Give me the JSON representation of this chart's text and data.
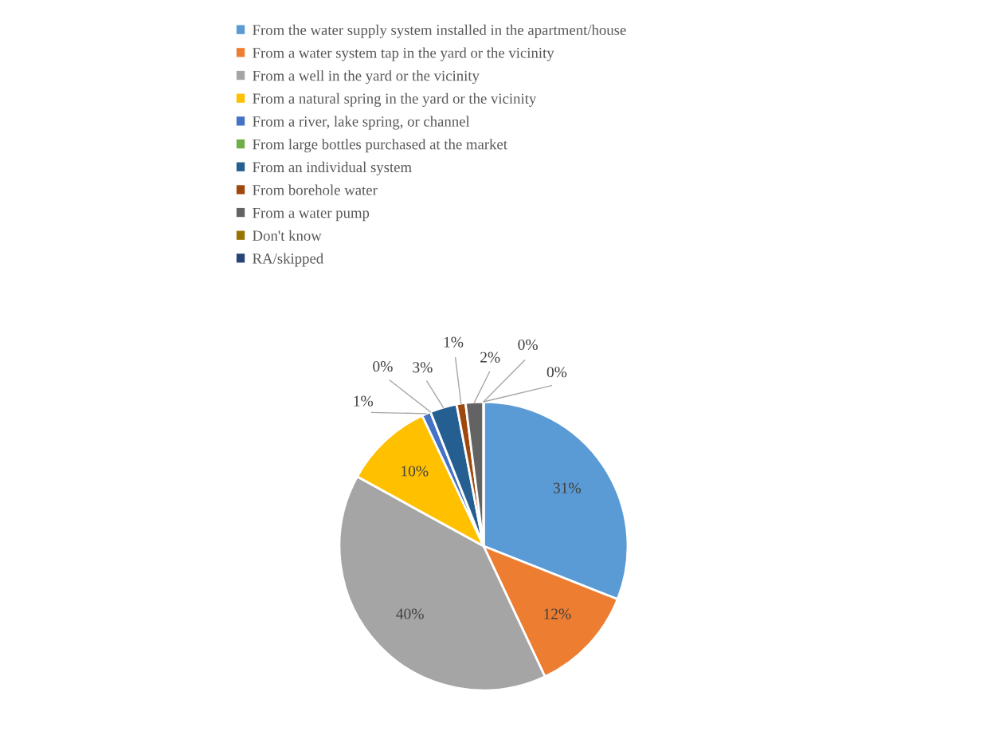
{
  "chart_data": {
    "type": "pie",
    "categories": [
      "From the water supply system installed in the apartment/house",
      "From a water system tap in the yard or the vicinity",
      "From a well in the yard or the vicinity",
      "From a natural spring in the yard or the vicinity",
      "From a river, lake spring, or channel",
      "From large bottles purchased at the market",
      "From an individual system",
      "From borehole water",
      "From a water pump",
      "Don't know",
      "RA/skipped"
    ],
    "values": [
      31,
      12,
      40,
      10,
      1,
      0,
      3,
      1,
      2,
      0,
      0
    ],
    "colors": [
      "#5b9bd5",
      "#ed7d31",
      "#a5a5a5",
      "#ffc000",
      "#4472c4",
      "#70ad47",
      "#255e91",
      "#9e480e",
      "#636363",
      "#997300",
      "#264478"
    ],
    "value_labels": [
      "31%",
      "12%",
      "40%",
      "10%",
      "1%",
      "0%",
      "3%",
      "1%",
      "2%",
      "0%",
      "0%"
    ],
    "legend": "top"
  }
}
